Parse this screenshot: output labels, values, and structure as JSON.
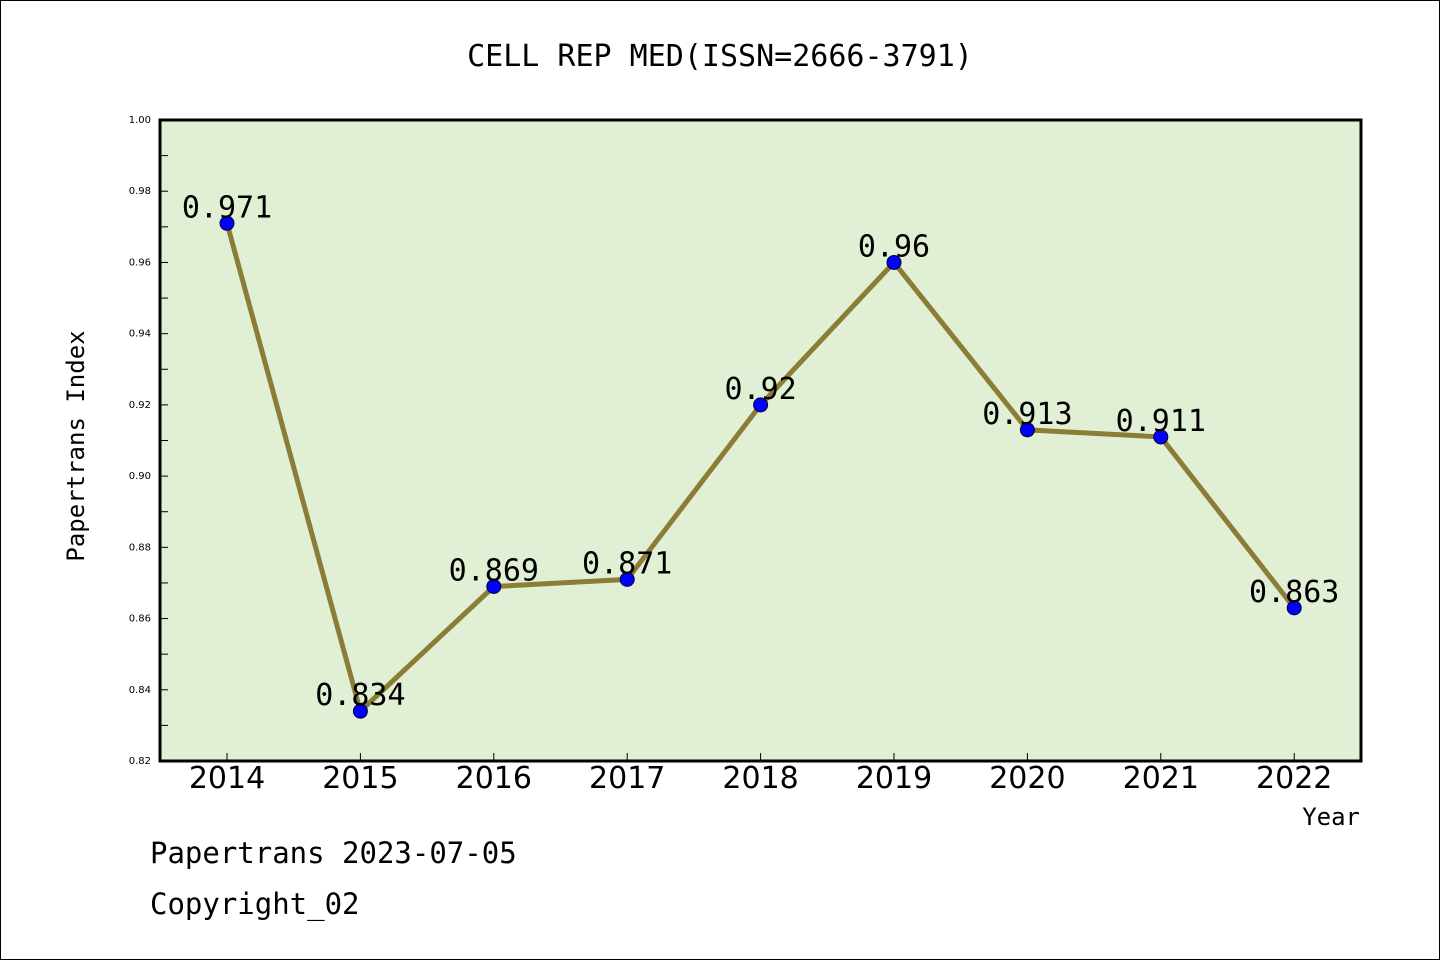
{
  "chart_data": {
    "type": "line",
    "title": "CELL REP MED(ISSN=2666-3791)",
    "xlabel": "Year",
    "ylabel": "Papertrans Index",
    "categories": [
      "2014",
      "2015",
      "2016",
      "2017",
      "2018",
      "2019",
      "2020",
      "2021",
      "2022"
    ],
    "values": [
      0.971,
      0.834,
      0.869,
      0.871,
      0.92,
      0.96,
      0.913,
      0.911,
      0.863
    ],
    "value_labels": [
      "0.971",
      "0.834",
      "0.869",
      "0.871",
      "0.92",
      "0.96",
      "0.913",
      "0.911",
      "0.863"
    ],
    "ylim": [
      0.82,
      1.0
    ],
    "yticks": [
      "0.82",
      "0.84",
      "0.86",
      "0.88",
      "0.90",
      "0.92",
      "0.94",
      "0.96",
      "0.98",
      "1.00"
    ],
    "grid": false,
    "legend": "none",
    "colors": {
      "plot_background": "#e1efd5",
      "line": "#8b7d35",
      "marker": "#0000ff"
    }
  },
  "footer": {
    "date_text": "Papertrans 2023-07-05",
    "copyright_text": "Copyright_02"
  }
}
